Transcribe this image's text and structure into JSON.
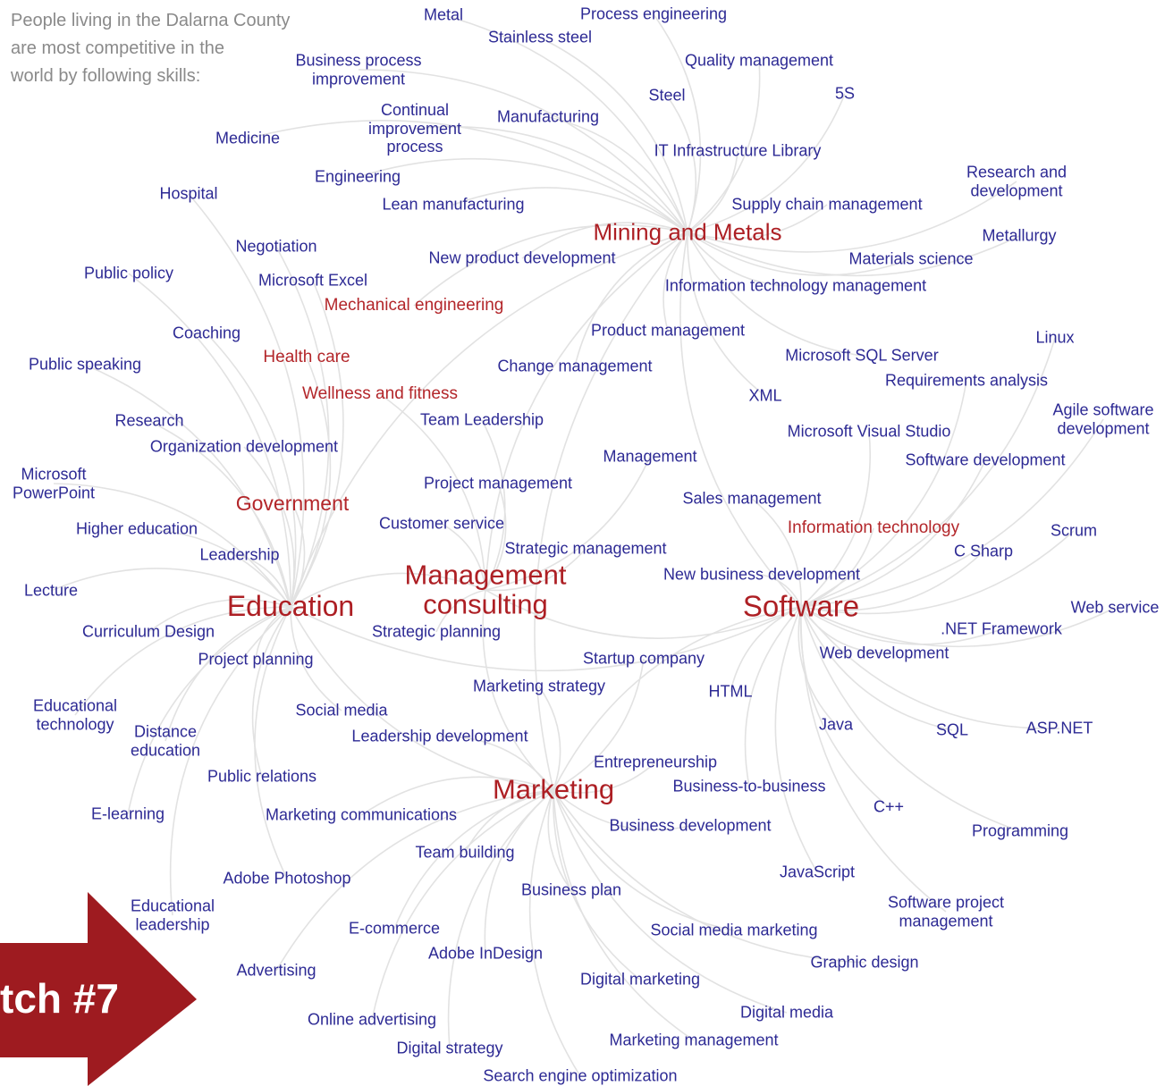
{
  "intro": "People living in the Dalarna County\nare most competitive in the\nworld by following skills:",
  "hubs": [
    "Mining and Metals",
    "Management\nconsulting",
    "Education",
    "Software",
    "Marketing"
  ],
  "topics": [
    "Mechanical engineering",
    "Health care",
    "Wellness and fitness",
    "Government",
    "Information technology"
  ],
  "skills": [
    "Metal",
    "Process engineering",
    "Stainless steel",
    "Business process\nimprovement",
    "Quality management",
    "Steel",
    "5S",
    "Continual\nimprovement\nprocess",
    "Manufacturing",
    "Medicine",
    "IT Infrastructure Library",
    "Research and\ndevelopment",
    "Engineering",
    "Hospital",
    "Lean manufacturing",
    "Supply chain management",
    "Metallurgy",
    "Negotiation",
    "New product development",
    "Materials science",
    "Public policy",
    "Microsoft Excel",
    "Information technology management",
    "Product management",
    "Linux",
    "Coaching",
    "Microsoft SQL Server",
    "Public speaking",
    "Change management",
    "Requirements analysis",
    "XML",
    "Agile software\ndevelopment",
    "Research",
    "Team Leadership",
    "Microsoft Visual Studio",
    "Organization development",
    "Management",
    "Software development",
    "Microsoft\nPowerPoint",
    "Project management",
    "Sales management",
    "Customer service",
    "Higher education",
    "Scrum",
    "Strategic management",
    "Leadership",
    "C Sharp",
    "New business development",
    "Lecture",
    "Web service",
    ".NET Framework",
    "Curriculum Design",
    "Strategic planning",
    "Project planning",
    "Startup company",
    "Web development",
    "Marketing strategy",
    "HTML",
    "Educational\ntechnology",
    "Social media",
    "Distance\neducation",
    "Java",
    "SQL",
    "ASP.NET",
    "Leadership development",
    "Entrepreneurship",
    "Public relations",
    "Business-to-business",
    "C++",
    "E-learning",
    "Marketing communications",
    "Business development",
    "Programming",
    "Team building",
    "JavaScript",
    "Adobe Photoshop",
    "Business plan",
    "Educational\nleadership",
    "Software project\nmanagement",
    "E-commerce",
    "Social media marketing",
    "Adobe InDesign",
    "Graphic design",
    "Advertising",
    "Digital marketing",
    "Digital media",
    "Online advertising",
    "Marketing management",
    "Digital strategy",
    "Search engine optimization"
  ],
  "badge": "tch #7"
}
